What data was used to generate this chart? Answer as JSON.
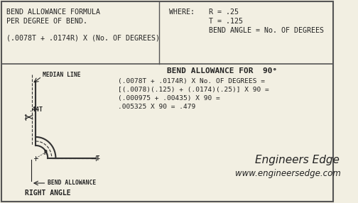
{
  "bg_color": "#f2efe2",
  "border_color": "#555555",
  "text_color": "#222222",
  "top_section": {
    "formula_line1": "BEND ALLOWANCE FORMULA",
    "formula_line2": "PER DEGREE OF BEND.",
    "formula_line3": "(.0078T + .0174R) X (No. OF DEGREES)",
    "where_label": "WHERE:",
    "where_r": "R = .25",
    "where_t": "T = .125",
    "where_angle": "BEND ANGLE = No. OF DEGREES"
  },
  "bottom_section": {
    "title": "BEND ALLOWANCE FOR  90°",
    "calc_line1": "(.0078T + .0174R) X No. OF DEGREES =",
    "calc_line2": "[(.0078)(.125) + (.0174)(.25)] X 90 =",
    "calc_line3": "(.000975 + .00435) X 90 =",
    "calc_line4": ".005325 X 90 = .479",
    "brand_line1": "Engineers Edge",
    "brand_line2": "www.engineersedge.com",
    "diagram_labels": {
      "median_line": "MEDIAN LINE",
      "dim_44t": ".44T",
      "radius": "R",
      "thickness": "T",
      "bend_allowance": "BEND ALLOWANCE",
      "right_angle": "RIGHT ANGLE"
    }
  }
}
